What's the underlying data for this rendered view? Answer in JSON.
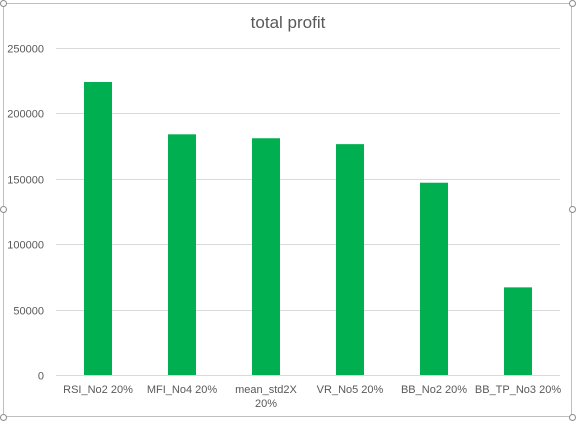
{
  "chart_data": {
    "type": "bar",
    "title": "total profit",
    "categories": [
      "RSI_No2 20%",
      "MFI_No4 20%",
      "mean_std2X 20%",
      "VR_No5 20%",
      "BB_No2 20%",
      "BB_TP_No3 20%"
    ],
    "category_lines": [
      [
        "RSI_No2 20%"
      ],
      [
        "MFI_No4 20%"
      ],
      [
        "mean_std2X",
        "20%"
      ],
      [
        "VR_No5 20%"
      ],
      [
        "BB_No2 20%"
      ],
      [
        "BB_TP_No3 20%"
      ]
    ],
    "values": [
      224000,
      184000,
      181000,
      176500,
      147000,
      67000
    ],
    "ylim": [
      0,
      250000
    ],
    "yticks": [
      0,
      50000,
      100000,
      150000,
      200000,
      250000
    ],
    "ytick_labels": [
      "0",
      "50000",
      "100000",
      "150000",
      "200000",
      "250000"
    ],
    "xlabel": "",
    "ylabel": "",
    "grid": true,
    "legend": "none",
    "colors": {
      "bar": "#00b050",
      "grid": "#d9d9d9",
      "text": "#595959",
      "frame": "#bfbfbf"
    }
  }
}
